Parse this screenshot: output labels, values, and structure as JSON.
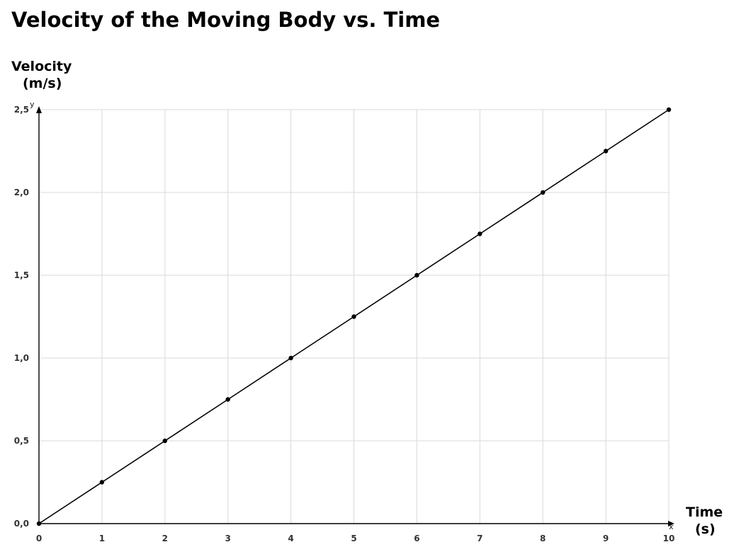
{
  "chart_data": {
    "type": "line",
    "title": "Velocity of the Moving Body vs. Time",
    "ylabel_line1": "Velocity",
    "ylabel_line2": "(m/s)",
    "xlabel_line1": "Time",
    "xlabel_line2": "(s)",
    "x_axis_letter": "x",
    "y_axis_letter": "y",
    "xlim": [
      0,
      10
    ],
    "ylim": [
      0,
      2.5
    ],
    "x_ticks": [
      0,
      1,
      2,
      3,
      4,
      5,
      6,
      7,
      8,
      9,
      10
    ],
    "x_tick_labels": [
      "0",
      "1",
      "2",
      "3",
      "4",
      "5",
      "6",
      "7",
      "8",
      "9",
      "10"
    ],
    "y_ticks": [
      0,
      0.5,
      1.0,
      1.5,
      2.0,
      2.5
    ],
    "y_tick_labels": [
      "0,0",
      "0,5",
      "1,0",
      "1,5",
      "2,0",
      "2,5"
    ],
    "grid": true,
    "series": [
      {
        "x": [
          0,
          1,
          2,
          3,
          4,
          5,
          6,
          7,
          8,
          9,
          10
        ],
        "y": [
          0,
          0.25,
          0.5,
          0.75,
          1.0,
          1.25,
          1.5,
          1.75,
          2.0,
          2.25,
          2.5
        ],
        "color": "#000000",
        "markers": true
      }
    ]
  }
}
